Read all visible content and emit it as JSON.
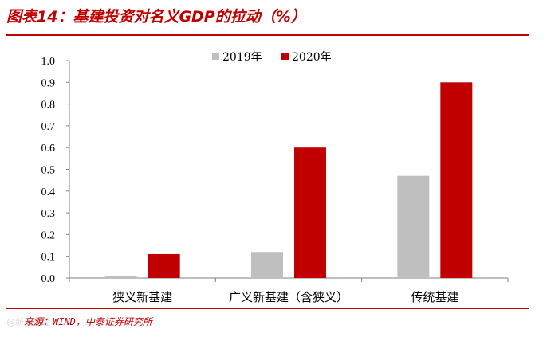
{
  "page": {
    "title": "图表14：基建投资对名义GDP的拉动（%）",
    "source": "来源：WIND，中泰证券研究所",
    "watermark": "@新浪财经"
  },
  "colors": {
    "accent": "#c00000",
    "series_2019": "#bfbfbf",
    "series_2020": "#c00000",
    "axis": "#808080"
  },
  "chart_data": {
    "type": "bar",
    "title": "基建投资对名义GDP的拉动（%）",
    "categories": [
      "狭义新基建",
      "广义新基建（含狭义）",
      "传统基建"
    ],
    "series": [
      {
        "name": "2019年",
        "values": [
          0.01,
          0.12,
          0.47
        ]
      },
      {
        "name": "2020年",
        "values": [
          0.11,
          0.6,
          0.9
        ]
      }
    ],
    "ylim": [
      0,
      1.0
    ],
    "yticks": [
      "0.0",
      "0.1",
      "0.2",
      "0.3",
      "0.4",
      "0.5",
      "0.6",
      "0.7",
      "0.8",
      "0.9",
      "1.0"
    ],
    "xlabel": "",
    "ylabel": "",
    "legend": "top-center",
    "grid": false
  }
}
